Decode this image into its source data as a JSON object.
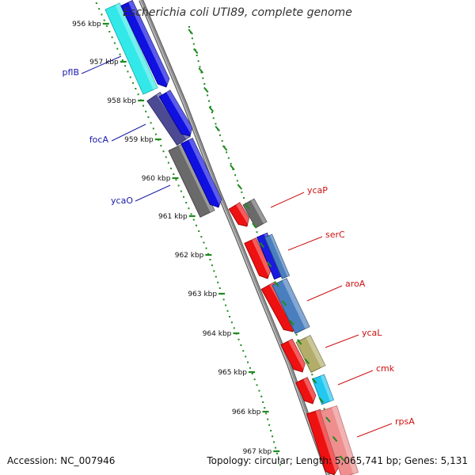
{
  "title": "Escherichia coli UTI89, complete genome",
  "footer": {
    "accession": "Accession: NC_007946",
    "summary": "Topology: circular; Length: 5,065,741 bp; Genes: 5,131"
  },
  "colors": {
    "backbone": "#8f8f8f",
    "tick": "#1f8a1f",
    "left_gene_label": "#1a1aa8",
    "right_gene_label": "#cc1111",
    "kbp_label": "#111111"
  },
  "kbp_labels": [
    "956 kbp",
    "957 kbp",
    "958 kbp",
    "959 kbp",
    "960 kbp",
    "961 kbp",
    "962 kbp",
    "963 kbp",
    "964 kbp",
    "965 kbp",
    "966 kbp",
    "967 kbp"
  ],
  "left_genes": [
    {
      "name": "pflB"
    },
    {
      "name": "focA"
    },
    {
      "name": "ycaO"
    }
  ],
  "right_genes": [
    {
      "name": "ycaP"
    },
    {
      "name": "serC"
    },
    {
      "name": "aroA"
    },
    {
      "name": "ycaL"
    },
    {
      "name": "cmk"
    },
    {
      "name": "rpsA"
    }
  ]
}
